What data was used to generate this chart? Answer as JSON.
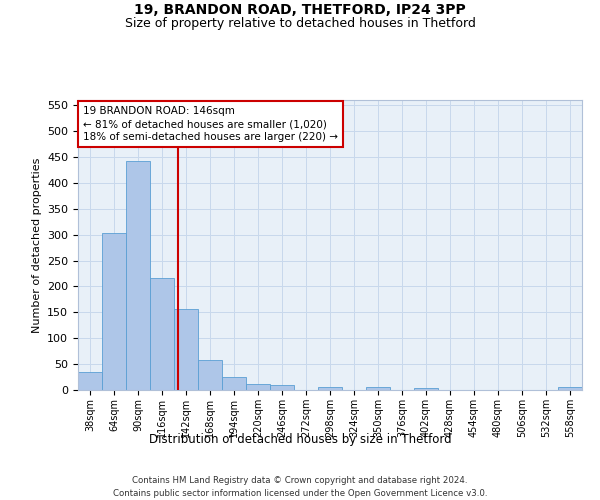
{
  "title1": "19, BRANDON ROAD, THETFORD, IP24 3PP",
  "title2": "Size of property relative to detached houses in Thetford",
  "xlabel": "Distribution of detached houses by size in Thetford",
  "ylabel": "Number of detached properties",
  "bin_labels": [
    "38sqm",
    "64sqm",
    "90sqm",
    "116sqm",
    "142sqm",
    "168sqm",
    "194sqm",
    "220sqm",
    "246sqm",
    "272sqm",
    "298sqm",
    "324sqm",
    "350sqm",
    "376sqm",
    "402sqm",
    "428sqm",
    "454sqm",
    "480sqm",
    "506sqm",
    "532sqm",
    "558sqm"
  ],
  "bar_heights": [
    35,
    303,
    443,
    217,
    157,
    57,
    25,
    12,
    10,
    0,
    5,
    0,
    6,
    0,
    4,
    0,
    0,
    0,
    0,
    0,
    5
  ],
  "bar_color": "#aec6e8",
  "bar_edge_color": "#5a9fd4",
  "property_line_color": "#cc0000",
  "annotation_text": "19 BRANDON ROAD: 146sqm\n← 81% of detached houses are smaller (1,020)\n18% of semi-detached houses are larger (220) →",
  "annotation_box_color": "#ffffff",
  "annotation_box_edge_color": "#cc0000",
  "ylim": [
    0,
    560
  ],
  "yticks": [
    0,
    50,
    100,
    150,
    200,
    250,
    300,
    350,
    400,
    450,
    500,
    550
  ],
  "grid_color": "#c8d8ec",
  "background_color": "#e8f0f8",
  "footer_text": "Contains HM Land Registry data © Crown copyright and database right 2024.\nContains public sector information licensed under the Open Government Licence v3.0.",
  "fig_bg_color": "#ffffff"
}
